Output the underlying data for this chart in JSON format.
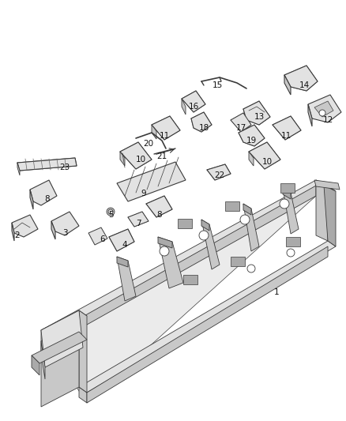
{
  "bg_color": "#ffffff",
  "line_color": "#3a3a3a",
  "face_light": "#e2e2e2",
  "face_mid": "#c8c8c8",
  "face_dark": "#aaaaaa",
  "fig_width": 4.38,
  "fig_height": 5.33,
  "dpi": 100,
  "labels": [
    {
      "num": "1",
      "xi": 350,
      "yi": 370
    },
    {
      "num": "2",
      "xi": 22,
      "yi": 298
    },
    {
      "num": "3",
      "xi": 82,
      "yi": 295
    },
    {
      "num": "4",
      "xi": 158,
      "yi": 310
    },
    {
      "num": "5",
      "xi": 140,
      "yi": 272
    },
    {
      "num": "6",
      "xi": 130,
      "yi": 303
    },
    {
      "num": "7",
      "xi": 175,
      "yi": 283
    },
    {
      "num": "8",
      "xi": 60,
      "yi": 252
    },
    {
      "num": "8",
      "xi": 202,
      "yi": 272
    },
    {
      "num": "9",
      "xi": 182,
      "yi": 245
    },
    {
      "num": "10",
      "xi": 178,
      "yi": 202
    },
    {
      "num": "10",
      "xi": 338,
      "yi": 205
    },
    {
      "num": "11",
      "xi": 208,
      "yi": 172
    },
    {
      "num": "11",
      "xi": 362,
      "yi": 172
    },
    {
      "num": "12",
      "xi": 415,
      "yi": 152
    },
    {
      "num": "13",
      "xi": 328,
      "yi": 148
    },
    {
      "num": "14",
      "xi": 385,
      "yi": 108
    },
    {
      "num": "15",
      "xi": 275,
      "yi": 108
    },
    {
      "num": "16",
      "xi": 245,
      "yi": 135
    },
    {
      "num": "17",
      "xi": 305,
      "yi": 162
    },
    {
      "num": "18",
      "xi": 258,
      "yi": 162
    },
    {
      "num": "19",
      "xi": 318,
      "yi": 178
    },
    {
      "num": "20",
      "xi": 188,
      "yi": 182
    },
    {
      "num": "21",
      "xi": 205,
      "yi": 198
    },
    {
      "num": "22",
      "xi": 278,
      "yi": 222
    },
    {
      "num": "23",
      "xi": 82,
      "yi": 212
    }
  ]
}
